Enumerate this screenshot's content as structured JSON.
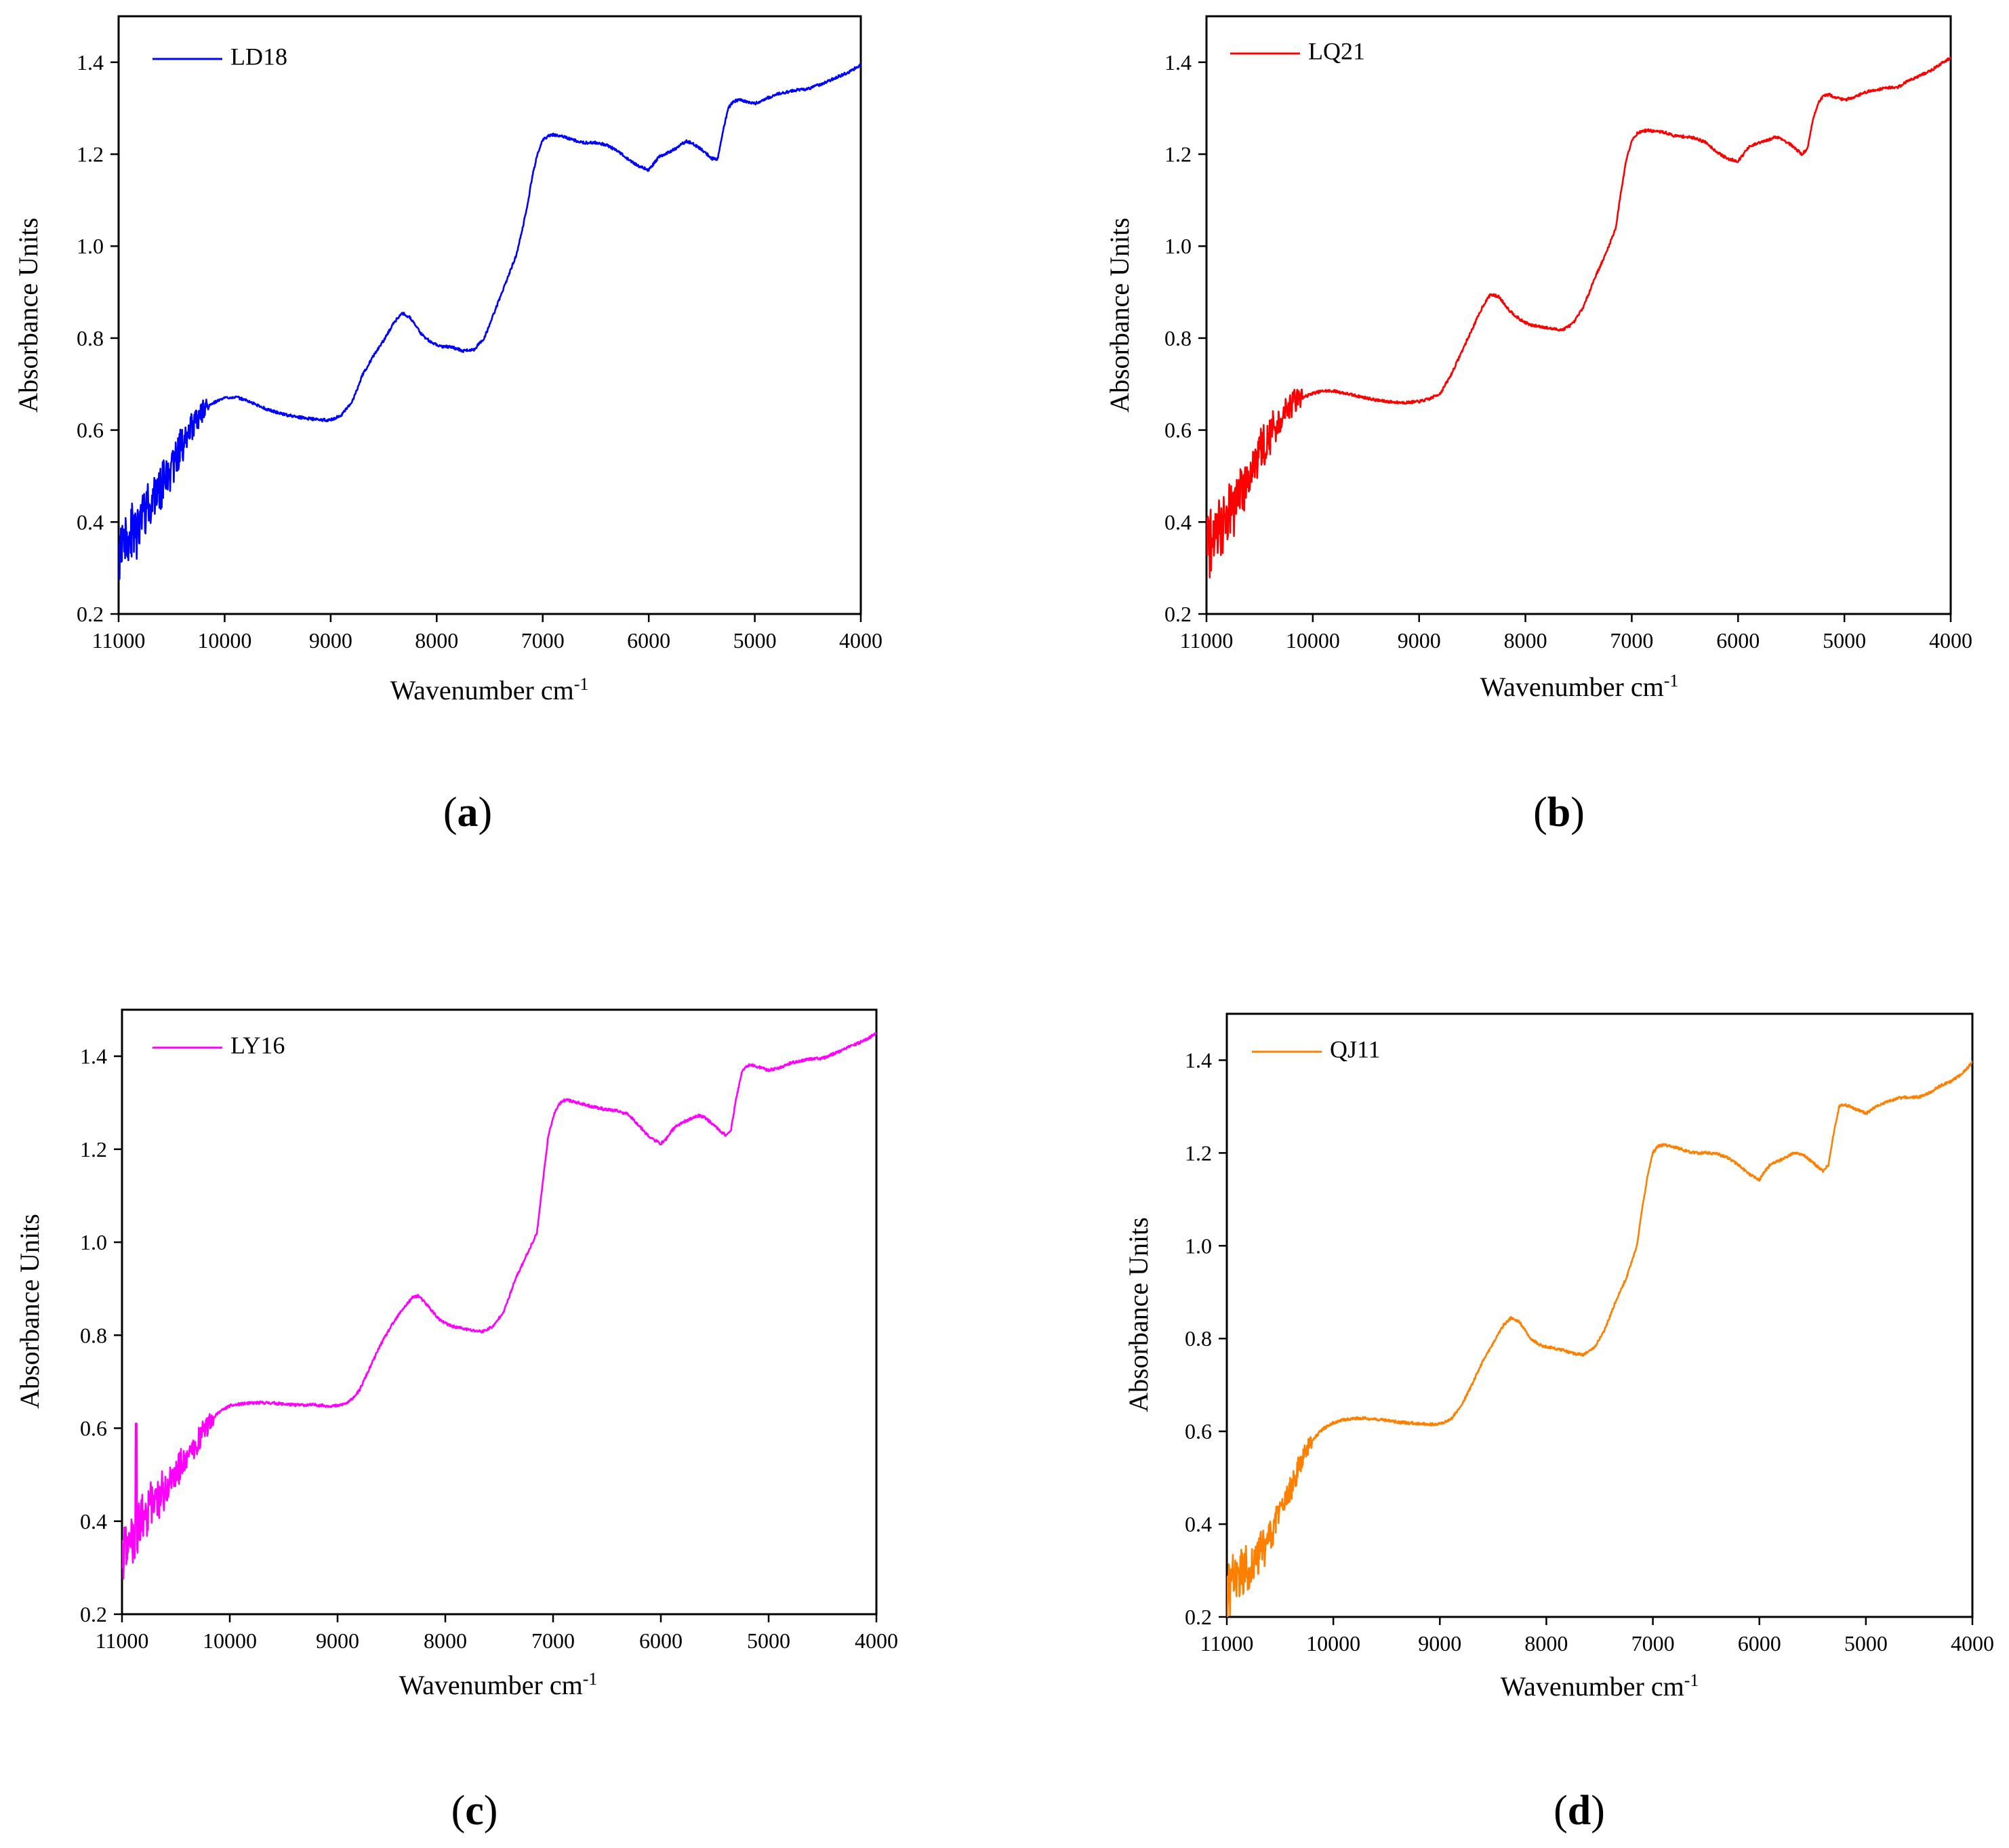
{
  "figure": {
    "panels": [
      {
        "paren_open": "(",
        "letter": "a",
        "paren_close": ")"
      },
      {
        "paren_open": "(",
        "letter": "b",
        "paren_close": ")"
      },
      {
        "paren_open": "(",
        "letter": "c",
        "paren_close": ")"
      },
      {
        "paren_open": "(",
        "letter": "d",
        "paren_close": ")"
      }
    ]
  },
  "chart_data": [
    {
      "type": "line",
      "panel": "a",
      "title": "",
      "xlabel": "Wavenumber cm",
      "xlabel_sup": "-1",
      "ylabel": "Absorbance Units",
      "xlim": [
        11000,
        4000
      ],
      "ylim": [
        0.2,
        1.5
      ],
      "xticks": [
        11000,
        10000,
        9000,
        8000,
        7000,
        6000,
        5000,
        4000
      ],
      "xtick_labels": [
        "11000",
        "10000",
        "9000",
        "8000",
        "7000",
        "6000",
        "5000",
        "4000"
      ],
      "yticks": [
        0.2,
        0.4,
        0.6,
        0.8,
        1.0,
        1.2,
        1.4
      ],
      "ytick_labels": [
        "0.2",
        "0.4",
        "0.6",
        "0.8",
        "1.0",
        "1.2",
        "1.4"
      ],
      "legend_position": "top-left",
      "grid": false,
      "series": [
        {
          "name": "LD18",
          "color": "#0000ff",
          "noise_seed": 3,
          "x": [
            11000,
            10900,
            10800,
            10700,
            10600,
            10500,
            10400,
            10300,
            10200,
            10100,
            10000,
            9900,
            9800,
            9700,
            9600,
            9500,
            9400,
            9300,
            9200,
            9100,
            9000,
            8900,
            8800,
            8700,
            8600,
            8500,
            8400,
            8330,
            8250,
            8150,
            8050,
            7950,
            7850,
            7750,
            7650,
            7550,
            7450,
            7350,
            7250,
            7150,
            7100,
            7050,
            7000,
            6950,
            6900,
            6850,
            6800,
            6700,
            6600,
            6500,
            6400,
            6300,
            6200,
            6100,
            6000,
            5950,
            5900,
            5850,
            5800,
            5750,
            5700,
            5650,
            5600,
            5500,
            5400,
            5350,
            5300,
            5250,
            5200,
            5150,
            5100,
            5000,
            4900,
            4800,
            4700,
            4600,
            4500,
            4400,
            4300,
            4200,
            4100,
            4000
          ],
          "y": [
            0.32,
            0.36,
            0.4,
            0.44,
            0.48,
            0.52,
            0.57,
            0.61,
            0.645,
            0.66,
            0.67,
            0.672,
            0.665,
            0.655,
            0.645,
            0.638,
            0.632,
            0.628,
            0.625,
            0.622,
            0.622,
            0.632,
            0.66,
            0.72,
            0.76,
            0.795,
            0.835,
            0.855,
            0.845,
            0.81,
            0.79,
            0.782,
            0.78,
            0.772,
            0.775,
            0.8,
            0.86,
            0.92,
            0.98,
            1.08,
            1.15,
            1.2,
            1.23,
            1.24,
            1.243,
            1.24,
            1.238,
            1.23,
            1.225,
            1.225,
            1.22,
            1.208,
            1.19,
            1.175,
            1.165,
            1.18,
            1.195,
            1.2,
            1.205,
            1.212,
            1.22,
            1.228,
            1.225,
            1.21,
            1.19,
            1.19,
            1.25,
            1.3,
            1.315,
            1.318,
            1.316,
            1.31,
            1.32,
            1.33,
            1.335,
            1.34,
            1.342,
            1.35,
            1.36,
            1.37,
            1.38,
            1.395
          ],
          "noise_end": 10150,
          "noise_start_amp": 0.08,
          "noise_end_amp": 0.025
        }
      ]
    },
    {
      "type": "line",
      "panel": "b",
      "title": "",
      "xlabel": "Wavenumber cm",
      "xlabel_sup": "-1",
      "ylabel": "Absorbance Units",
      "xlim": [
        11000,
        4000
      ],
      "ylim": [
        0.2,
        1.5
      ],
      "xticks": [
        11000,
        10000,
        9000,
        8000,
        7000,
        6000,
        5000,
        4000
      ],
      "xtick_labels": [
        "11000",
        "10000",
        "9000",
        "8000",
        "7000",
        "6000",
        "5000",
        "4000"
      ],
      "yticks": [
        0.2,
        0.4,
        0.6,
        0.8,
        1.0,
        1.2,
        1.4
      ],
      "ytick_labels": [
        "0.2",
        "0.4",
        "0.6",
        "0.8",
        "1.0",
        "1.2",
        "1.4"
      ],
      "legend_position": "top-left",
      "grid": false,
      "series": [
        {
          "name": "LQ21",
          "color": "#ff0000",
          "noise_seed": 7,
          "x": [
            11000,
            10900,
            10800,
            10700,
            10600,
            10500,
            10400,
            10300,
            10200,
            10100,
            10000,
            9900,
            9800,
            9700,
            9600,
            9500,
            9400,
            9300,
            9200,
            9100,
            9000,
            8900,
            8800,
            8700,
            8600,
            8500,
            8400,
            8330,
            8250,
            8150,
            8050,
            7950,
            7850,
            7750,
            7650,
            7550,
            7450,
            7350,
            7250,
            7150,
            7100,
            7050,
            7000,
            6950,
            6900,
            6850,
            6800,
            6700,
            6600,
            6500,
            6400,
            6300,
            6200,
            6100,
            6000,
            5950,
            5900,
            5850,
            5800,
            5750,
            5700,
            5650,
            5600,
            5500,
            5400,
            5350,
            5300,
            5250,
            5200,
            5150,
            5100,
            5000,
            4900,
            4800,
            4700,
            4600,
            4500,
            4400,
            4300,
            4200,
            4100,
            4000
          ],
          "y": [
            0.34,
            0.37,
            0.41,
            0.45,
            0.5,
            0.55,
            0.59,
            0.63,
            0.655,
            0.67,
            0.68,
            0.685,
            0.685,
            0.68,
            0.675,
            0.67,
            0.665,
            0.662,
            0.66,
            0.66,
            0.662,
            0.668,
            0.68,
            0.72,
            0.77,
            0.82,
            0.87,
            0.895,
            0.89,
            0.86,
            0.84,
            0.828,
            0.825,
            0.82,
            0.818,
            0.832,
            0.87,
            0.93,
            0.98,
            1.04,
            1.12,
            1.19,
            1.23,
            1.245,
            1.25,
            1.252,
            1.25,
            1.248,
            1.24,
            1.238,
            1.235,
            1.225,
            1.205,
            1.19,
            1.185,
            1.2,
            1.215,
            1.22,
            1.225,
            1.228,
            1.232,
            1.238,
            1.235,
            1.22,
            1.2,
            1.21,
            1.27,
            1.31,
            1.325,
            1.33,
            1.325,
            1.318,
            1.325,
            1.335,
            1.34,
            1.345,
            1.345,
            1.36,
            1.37,
            1.38,
            1.395,
            1.41
          ],
          "noise_end": 10100,
          "noise_start_amp": 0.08,
          "noise_end_amp": 0.025
        }
      ]
    },
    {
      "type": "line",
      "panel": "c",
      "title": "",
      "xlabel": "Wavenumber cm",
      "xlabel_sup": "-1",
      "ylabel": "Absorbance Units",
      "xlim": [
        11000,
        4000
      ],
      "ylim": [
        0.2,
        1.5
      ],
      "xticks": [
        11000,
        10000,
        9000,
        8000,
        7000,
        6000,
        5000,
        4000
      ],
      "xtick_labels": [
        "11000",
        "10000",
        "9000",
        "8000",
        "7000",
        "6000",
        "5000",
        "4000"
      ],
      "yticks": [
        0.2,
        0.4,
        0.6,
        0.8,
        1.0,
        1.2,
        1.4
      ],
      "ytick_labels": [
        "0.2",
        "0.4",
        "0.6",
        "0.8",
        "1.0",
        "1.2",
        "1.4"
      ],
      "legend_position": "top-left",
      "grid": false,
      "series": [
        {
          "name": "LY16",
          "color": "#ff00ff",
          "noise_seed": 11,
          "x": [
            11000,
            10900,
            10800,
            10700,
            10600,
            10500,
            10400,
            10300,
            10200,
            10100,
            10000,
            9900,
            9800,
            9700,
            9600,
            9500,
            9400,
            9300,
            9200,
            9100,
            9000,
            8900,
            8800,
            8700,
            8600,
            8500,
            8400,
            8300,
            8250,
            8150,
            8050,
            7950,
            7850,
            7750,
            7650,
            7550,
            7450,
            7350,
            7250,
            7150,
            7100,
            7050,
            7000,
            6950,
            6900,
            6850,
            6800,
            6700,
            6600,
            6500,
            6400,
            6300,
            6200,
            6100,
            6000,
            5950,
            5900,
            5850,
            5800,
            5750,
            5700,
            5650,
            5600,
            5500,
            5400,
            5350,
            5300,
            5250,
            5200,
            5150,
            5100,
            5000,
            4900,
            4800,
            4700,
            4600,
            4500,
            4400,
            4300,
            4200,
            4100,
            4000
          ],
          "y": [
            0.33,
            0.37,
            0.41,
            0.44,
            0.47,
            0.51,
            0.54,
            0.57,
            0.61,
            0.635,
            0.648,
            0.652,
            0.654,
            0.655,
            0.654,
            0.652,
            0.65,
            0.65,
            0.65,
            0.648,
            0.648,
            0.655,
            0.68,
            0.73,
            0.78,
            0.82,
            0.855,
            0.882,
            0.885,
            0.86,
            0.832,
            0.82,
            0.815,
            0.81,
            0.808,
            0.82,
            0.855,
            0.92,
            0.97,
            1.02,
            1.12,
            1.22,
            1.27,
            1.295,
            1.305,
            1.305,
            1.302,
            1.295,
            1.29,
            1.285,
            1.282,
            1.275,
            1.25,
            1.225,
            1.212,
            1.222,
            1.24,
            1.25,
            1.258,
            1.262,
            1.268,
            1.272,
            1.27,
            1.25,
            1.23,
            1.24,
            1.31,
            1.365,
            1.38,
            1.38,
            1.377,
            1.37,
            1.375,
            1.385,
            1.39,
            1.395,
            1.395,
            1.405,
            1.415,
            1.425,
            1.435,
            1.45
          ],
          "noise_end": 10150,
          "noise_start_amp": 0.07,
          "noise_end_amp": 0.02,
          "spike": {
            "x": 10870,
            "y": 0.61
          }
        }
      ]
    },
    {
      "type": "line",
      "panel": "d",
      "title": "",
      "xlabel": "Wavenumber cm",
      "xlabel_sup": "-1",
      "ylabel": "Absorbance Units",
      "xlim": [
        11000,
        4000
      ],
      "ylim": [
        0.2,
        1.5
      ],
      "xticks": [
        11000,
        10000,
        9000,
        8000,
        7000,
        6000,
        5000,
        4000
      ],
      "xtick_labels": [
        "11000",
        "10000",
        "9000",
        "8000",
        "7000",
        "6000",
        "5000",
        "4000"
      ],
      "yticks": [
        0.2,
        0.4,
        0.6,
        0.8,
        1.0,
        1.2,
        1.4
      ],
      "ytick_labels": [
        "0.2",
        "0.4",
        "0.6",
        "0.8",
        "1.0",
        "1.2",
        "1.4"
      ],
      "legend_position": "top-left",
      "grid": false,
      "series": [
        {
          "name": "QJ11",
          "color": "#ff8000",
          "noise_seed": 19,
          "x": [
            11000,
            10900,
            10800,
            10700,
            10600,
            10500,
            10400,
            10300,
            10200,
            10100,
            10000,
            9900,
            9800,
            9700,
            9600,
            9500,
            9400,
            9300,
            9200,
            9100,
            9000,
            8900,
            8800,
            8700,
            8600,
            8500,
            8400,
            8330,
            8250,
            8150,
            8050,
            7950,
            7850,
            7750,
            7650,
            7550,
            7450,
            7350,
            7250,
            7150,
            7100,
            7050,
            7000,
            6950,
            6900,
            6850,
            6800,
            6700,
            6600,
            6500,
            6400,
            6300,
            6200,
            6100,
            6000,
            5950,
            5900,
            5850,
            5800,
            5750,
            5700,
            5650,
            5600,
            5500,
            5400,
            5350,
            5300,
            5250,
            5200,
            5150,
            5100,
            5000,
            4900,
            4800,
            4700,
            4600,
            4500,
            4400,
            4300,
            4200,
            4100,
            4000
          ],
          "y": [
            0.26,
            0.28,
            0.3,
            0.33,
            0.38,
            0.43,
            0.48,
            0.54,
            0.58,
            0.605,
            0.618,
            0.625,
            0.628,
            0.628,
            0.626,
            0.624,
            0.62,
            0.618,
            0.617,
            0.615,
            0.616,
            0.625,
            0.655,
            0.7,
            0.75,
            0.79,
            0.83,
            0.845,
            0.835,
            0.8,
            0.785,
            0.78,
            0.775,
            0.768,
            0.765,
            0.78,
            0.82,
            0.88,
            0.93,
            1.0,
            1.08,
            1.15,
            1.2,
            1.215,
            1.218,
            1.215,
            1.213,
            1.205,
            1.2,
            1.2,
            1.198,
            1.19,
            1.175,
            1.155,
            1.142,
            1.16,
            1.175,
            1.18,
            1.185,
            1.19,
            1.198,
            1.2,
            1.198,
            1.18,
            1.16,
            1.175,
            1.245,
            1.3,
            1.305,
            1.3,
            1.295,
            1.285,
            1.3,
            1.31,
            1.318,
            1.32,
            1.32,
            1.33,
            1.345,
            1.355,
            1.37,
            1.395
          ],
          "noise_end": 10200,
          "noise_start_amp": 0.07,
          "noise_end_amp": 0.02
        }
      ]
    }
  ]
}
